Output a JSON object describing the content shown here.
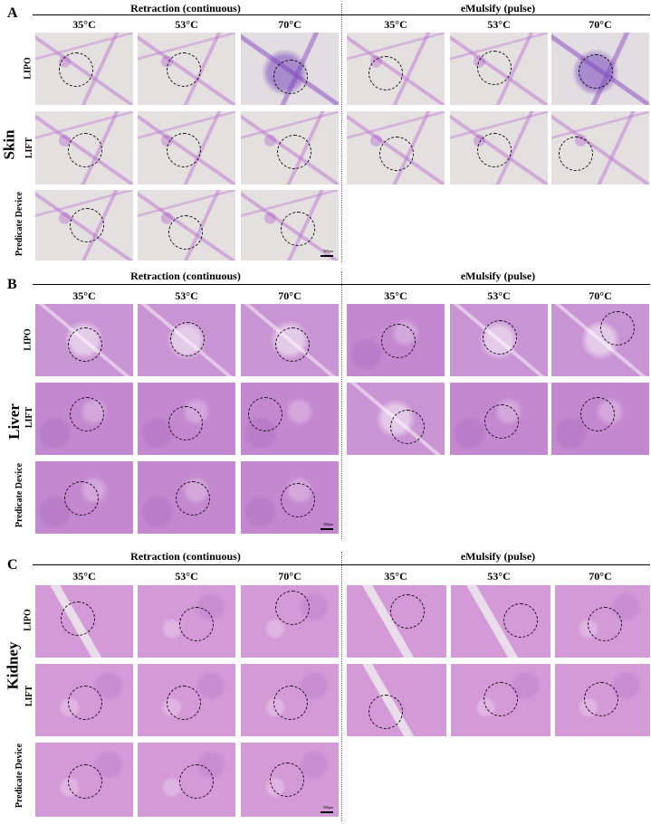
{
  "panels": [
    {
      "letter": "A",
      "organ": "Skin",
      "left_group": "Retraction (continuous)",
      "right_group": "eMulsify (pulse)",
      "temps": [
        "35°C",
        "53°C",
        "70°C"
      ],
      "rows": [
        "LIPO",
        "LIFT",
        "Predicate Device"
      ],
      "scale_label": "500μm"
    },
    {
      "letter": "B",
      "organ": "Liver",
      "left_group": "Retraction (continuous)",
      "right_group": "eMulsify (pulse)",
      "temps": [
        "35°C",
        "53°C",
        "70°C"
      ],
      "rows": [
        "LIPO",
        "LIFT",
        "Predicate Device"
      ],
      "scale_label": "500μm"
    },
    {
      "letter": "C",
      "organ": "Kidney",
      "left_group": "Retraction (continuous)",
      "right_group": "eMulsify (pulse)",
      "temps": [
        "35°C",
        "53°C",
        "70°C"
      ],
      "rows": [
        "LIPO",
        "LIFT",
        "Predicate Device"
      ],
      "scale_label": "500μm"
    }
  ]
}
